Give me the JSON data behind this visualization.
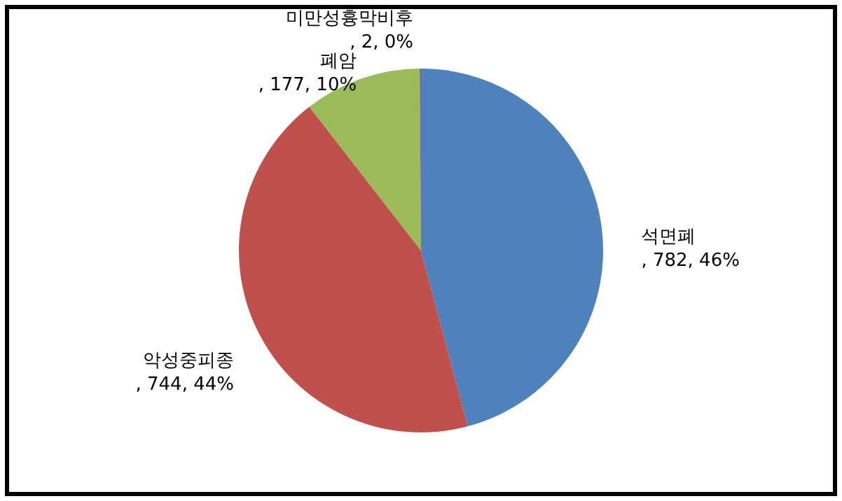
{
  "chart_data": {
    "type": "pie",
    "categories": [
      "석면폐",
      "악성중피종",
      "폐암",
      "미만성흉막비후"
    ],
    "values": [
      782,
      744,
      177,
      2
    ],
    "colors": [
      "#4f81bd",
      "#c0504d",
      "#9bbb59",
      "#8064a2"
    ],
    "value_labels": [
      ", 782, 46%",
      ", 744, 44%",
      ", 177, 10%",
      " , 2, 0%"
    ],
    "legend": false
  }
}
